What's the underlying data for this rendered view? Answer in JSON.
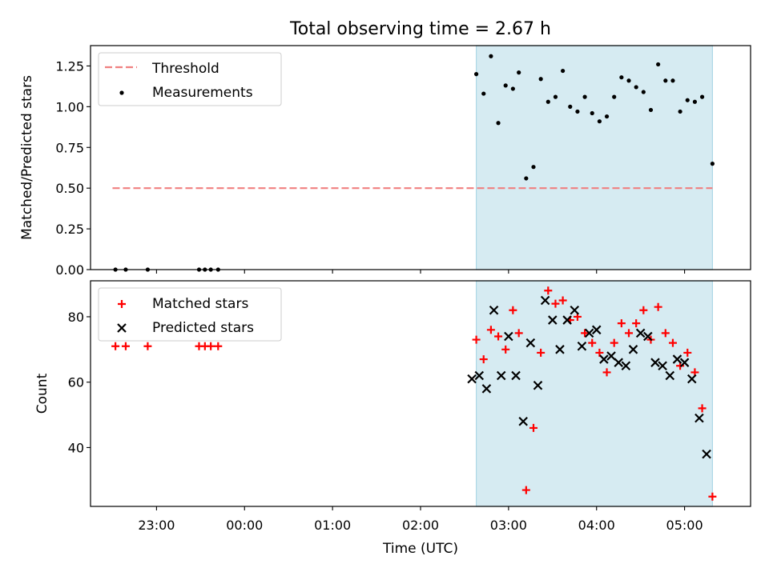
{
  "title": "Total observing time = 2.67 h",
  "xlabel": "Time (UTC)",
  "xticks": [
    "23:00",
    "00:00",
    "01:00",
    "02:00",
    "03:00",
    "04:00",
    "05:00"
  ],
  "colors": {
    "threshold": "#f08080",
    "measurement": "#000000",
    "matched": "#ff0000",
    "predicted": "#000000",
    "span_fill": "#add8e6"
  },
  "chart_data": [
    {
      "type": "scatter",
      "ylabel": "Matched/Predicted stars",
      "ylim": [
        0,
        1.375
      ],
      "yticks": [
        "0.00",
        "0.25",
        "0.50",
        "0.75",
        "1.00",
        "1.25"
      ],
      "xlim": [
        "22:15",
        "05:45"
      ],
      "legend": {
        "placement": "top-left",
        "entries": [
          "Threshold",
          "Measurements"
        ]
      },
      "highlight_span": [
        "02:38",
        "05:19"
      ],
      "threshold": {
        "name": "Threshold",
        "y": 0.5,
        "x_start": "22:30",
        "x_end": "05:19"
      },
      "series": [
        {
          "name": "Measurements",
          "x": [
            "22:32",
            "22:39",
            "22:54",
            "23:29",
            "23:33",
            "23:37",
            "23:42",
            "02:38",
            "02:43",
            "02:48",
            "02:53",
            "02:58",
            "03:03",
            "03:07",
            "03:12",
            "03:17",
            "03:22",
            "03:27",
            "03:32",
            "03:37",
            "03:42",
            "03:47",
            "03:52",
            "03:57",
            "04:02",
            "04:07",
            "04:12",
            "04:17",
            "04:22",
            "04:27",
            "04:32",
            "04:37",
            "04:42",
            "04:47",
            "04:52",
            "04:57",
            "05:02",
            "05:07",
            "05:12",
            "05:19"
          ],
          "y": [
            0,
            0,
            0,
            0,
            0,
            0,
            0,
            1.2,
            1.08,
            1.31,
            0.9,
            1.13,
            1.11,
            1.21,
            0.56,
            0.63,
            1.17,
            1.03,
            1.06,
            1.22,
            1.0,
            0.97,
            1.06,
            0.96,
            0.91,
            0.94,
            1.06,
            1.18,
            1.16,
            1.12,
            1.09,
            0.98,
            1.26,
            1.16,
            1.16,
            0.97,
            1.04,
            1.03,
            1.06,
            0.65
          ]
        }
      ]
    },
    {
      "type": "scatter",
      "ylabel": "Count",
      "ylim": [
        22,
        91
      ],
      "yticks": [
        "40",
        "60",
        "80"
      ],
      "xlim": [
        "22:15",
        "05:45"
      ],
      "legend": {
        "placement": "top-left",
        "entries": [
          "Matched stars",
          "Predicted stars"
        ]
      },
      "highlight_span": [
        "02:38",
        "05:19"
      ],
      "series": [
        {
          "name": "Matched stars",
          "marker": "plus",
          "x": [
            "22:32",
            "22:39",
            "22:54",
            "23:29",
            "23:33",
            "23:37",
            "23:42",
            "02:38",
            "02:43",
            "02:48",
            "02:53",
            "02:58",
            "03:03",
            "03:07",
            "03:12",
            "03:17",
            "03:22",
            "03:27",
            "03:32",
            "03:37",
            "03:42",
            "03:47",
            "03:52",
            "03:57",
            "04:02",
            "04:07",
            "04:12",
            "04:17",
            "04:22",
            "04:27",
            "04:32",
            "04:37",
            "04:42",
            "04:47",
            "04:52",
            "04:57",
            "05:02",
            "05:07",
            "05:12",
            "05:19"
          ],
          "y": [
            71,
            71,
            71,
            71,
            71,
            71,
            71,
            73,
            67,
            76,
            74,
            70,
            82,
            75,
            27,
            46,
            69,
            88,
            84,
            85,
            79,
            80,
            75,
            72,
            69,
            63,
            72,
            78,
            75,
            78,
            82,
            73,
            83,
            75,
            72,
            65,
            69,
            63,
            52,
            25
          ]
        },
        {
          "name": "Predicted stars",
          "marker": "x",
          "x": [
            "02:35",
            "02:40",
            "02:45",
            "02:50",
            "02:55",
            "03:00",
            "03:05",
            "03:10",
            "03:15",
            "03:20",
            "03:25",
            "03:30",
            "03:35",
            "03:40",
            "03:45",
            "03:50",
            "03:55",
            "04:00",
            "04:05",
            "04:10",
            "04:15",
            "04:20",
            "04:25",
            "04:30",
            "04:35",
            "04:40",
            "04:45",
            "04:50",
            "04:55",
            "05:00",
            "05:05",
            "05:10",
            "05:15"
          ],
          "y": [
            61,
            62,
            58,
            82,
            62,
            74,
            62,
            48,
            72,
            59,
            85,
            79,
            70,
            79,
            82,
            71,
            75,
            76,
            67,
            68,
            66,
            65,
            70,
            75,
            74,
            66,
            65,
            62,
            67,
            66,
            61,
            49,
            38
          ]
        }
      ]
    }
  ]
}
